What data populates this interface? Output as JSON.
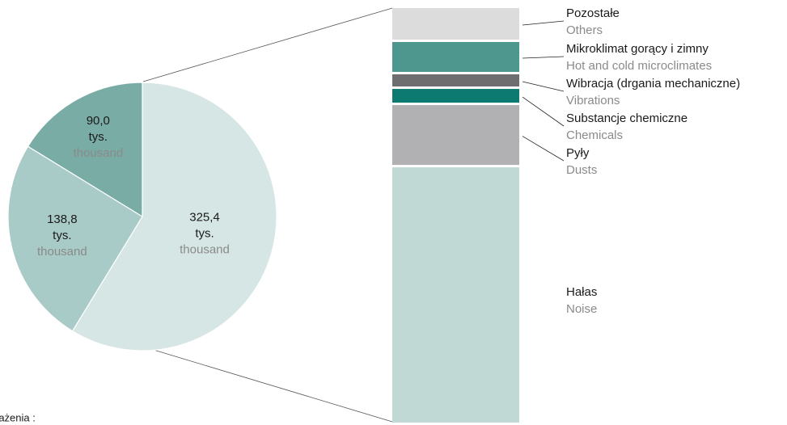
{
  "chart_data": [
    {
      "type": "pie",
      "categories": [
        null,
        null,
        null
      ],
      "values": [
        325.4,
        138.8,
        90.0
      ],
      "value_labels": [
        "325,4",
        "138,8",
        "90,0"
      ],
      "unit_label": "tys.",
      "unit_label_en": "thousand",
      "colors": [
        "#d6e6e5",
        "#a8cbc7",
        "#7aaca6"
      ]
    },
    {
      "type": "stacked-column",
      "series": [
        {
          "name": "Pozostałe",
          "name_en": "Others",
          "color": "#dcdcdd",
          "values": [
            26.5
          ]
        },
        {
          "name": "Mikroklimat gorący i zimny",
          "name_en": "Hot and cold microclimates",
          "color": "#4d978f",
          "values": [
            25.2
          ]
        },
        {
          "name": "Wibracja (drgania mechaniczne)",
          "name_en": "Vibrations",
          "color": "#6e6e70",
          "values": [
            11.4
          ]
        },
        {
          "name": "Substancje chemiczne",
          "name_en": "Chemicals",
          "color": "#0d7a72",
          "values": [
            12.6
          ]
        },
        {
          "name": "Pyły",
          "name_en": "Dusts",
          "color": "#b1b1b3",
          "values": [
            48.6
          ]
        },
        {
          "name": "Hałas",
          "name_en": "Noise",
          "color": "#c1d9d5",
          "values": [
            201.1
          ]
        }
      ]
    }
  ],
  "footnote": "rażenia :"
}
